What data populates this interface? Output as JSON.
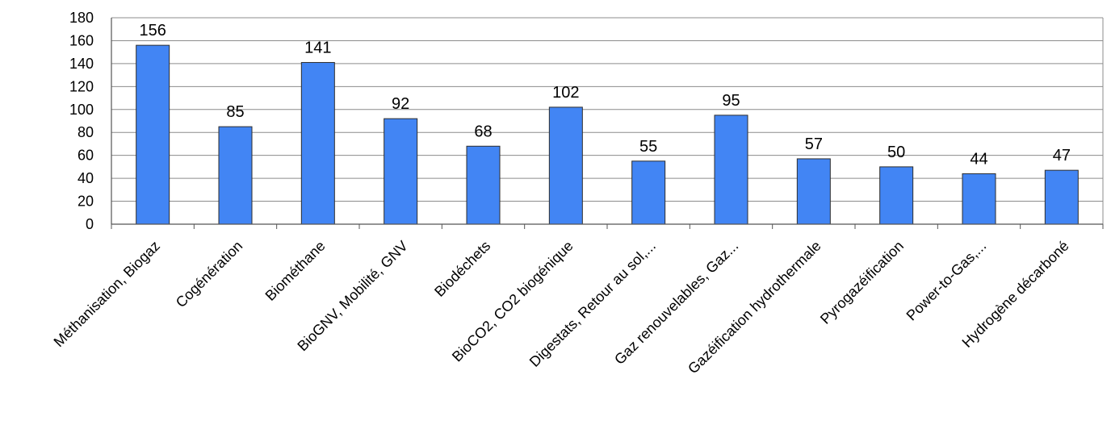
{
  "chart_data": {
    "type": "bar",
    "title": "",
    "xlabel": "",
    "ylabel": "",
    "categories": [
      "Méthanisation, Biogaz",
      "Cogénération",
      "Biométhane",
      "BioGNV, Mobilité, GNV",
      "Biodéchets",
      "BioCO2, CO2 biogénique",
      "Digestats, Retour au sol,...",
      "Gaz renouvelables, Gaz...",
      "Gazéification hydrothermale",
      "Pyrogazéification",
      "Power-to-Gas,...",
      "Hydrogène décarboné"
    ],
    "series": [
      {
        "values": [
          156,
          85,
          141,
          92,
          68,
          102,
          55,
          95,
          57,
          50,
          44,
          47
        ]
      }
    ],
    "ylim": [
      0,
      180
    ],
    "yticks": [
      0,
      20,
      40,
      60,
      80,
      100,
      120,
      140,
      160,
      180
    ],
    "grid": true,
    "legend": "none",
    "data_labels": true,
    "colors": {
      "bar": "#4285f4",
      "bar_edge": "#2d2d2d",
      "grid": "#8c8c8c",
      "axis": "#555555",
      "text": "#000000"
    }
  }
}
